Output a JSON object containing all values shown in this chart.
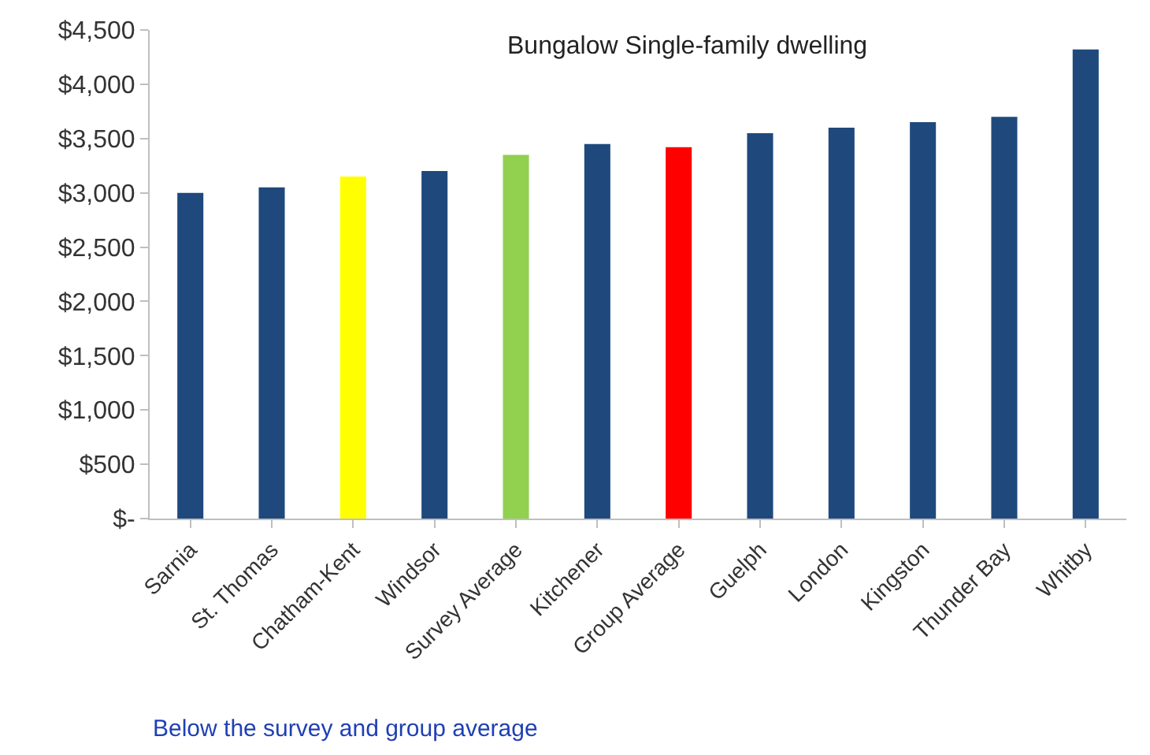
{
  "chart_data": {
    "type": "bar",
    "title": "Bungalow Single-family dwelling",
    "categories": [
      "Sarnia",
      "St. Thomas",
      "Chatham-Kent",
      "Windsor",
      "Survey Average",
      "Kitchener",
      "Group Average",
      "Guelph",
      "London",
      "Kingston",
      "Thunder Bay",
      "Whitby"
    ],
    "values": [
      3000,
      3050,
      3150,
      3200,
      3350,
      3450,
      3420,
      3550,
      3600,
      3650,
      3700,
      4320
    ],
    "colors": [
      "#1f497d",
      "#1f497d",
      "#ffff00",
      "#1f497d",
      "#92d050",
      "#1f497d",
      "#ff0000",
      "#1f497d",
      "#1f497d",
      "#1f497d",
      "#1f497d",
      "#1f497d"
    ],
    "ylim": [
      0,
      4500
    ],
    "yticks": [
      {
        "value": 0,
        "label": "$-"
      },
      {
        "value": 500,
        "label": "$500"
      },
      {
        "value": 1000,
        "label": "$1,000"
      },
      {
        "value": 1500,
        "label": "$1,500"
      },
      {
        "value": 2000,
        "label": "$2,000"
      },
      {
        "value": 2500,
        "label": "$2,500"
      },
      {
        "value": 3000,
        "label": "$3,000"
      },
      {
        "value": 3500,
        "label": "$3,500"
      },
      {
        "value": 4000,
        "label": "$4,000"
      },
      {
        "value": 4500,
        "label": "$4,500"
      }
    ],
    "annotations": [
      "Below the survey and group average"
    ]
  }
}
